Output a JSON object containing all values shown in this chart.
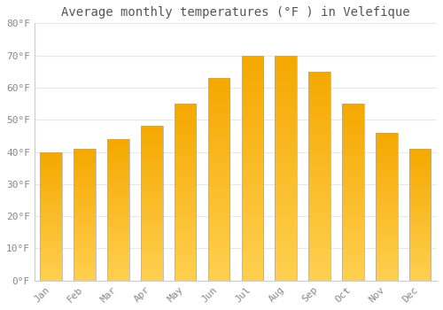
{
  "title": "Average monthly temperatures (°F ) in Velefique",
  "months": [
    "Jan",
    "Feb",
    "Mar",
    "Apr",
    "May",
    "Jun",
    "Jul",
    "Aug",
    "Sep",
    "Oct",
    "Nov",
    "Dec"
  ],
  "values": [
    40,
    41,
    44,
    48,
    55,
    63,
    70,
    70,
    65,
    55,
    46,
    41
  ],
  "bar_color_dark": "#F5A800",
  "bar_color_light": "#FFD050",
  "bar_edge_color": "#aaaaaa",
  "ylim": [
    0,
    80
  ],
  "yticks": [
    0,
    10,
    20,
    30,
    40,
    50,
    60,
    70,
    80
  ],
  "ytick_labels": [
    "0°F",
    "10°F",
    "20°F",
    "30°F",
    "40°F",
    "50°F",
    "60°F",
    "70°F",
    "80°F"
  ],
  "background_color": "#ffffff",
  "grid_color": "#e8e8e8",
  "title_fontsize": 10,
  "tick_fontsize": 8,
  "tick_color": "#888888",
  "title_color": "#555555"
}
